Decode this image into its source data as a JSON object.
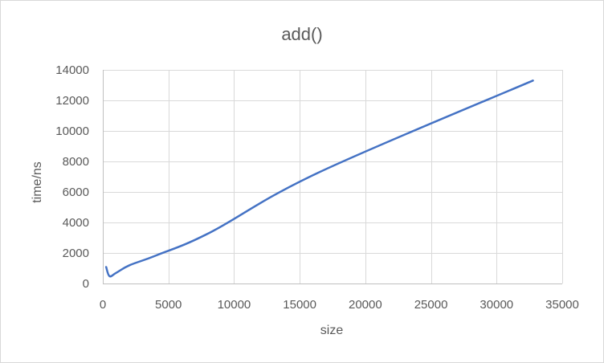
{
  "chart_data": {
    "type": "scatter",
    "title": "add()",
    "xlabel": "size",
    "ylabel": "time/ns",
    "xlim": [
      0,
      35000
    ],
    "ylim": [
      0,
      14000
    ],
    "xticks": [
      0,
      5000,
      10000,
      15000,
      20000,
      25000,
      30000,
      35000
    ],
    "yticks": [
      0,
      2000,
      4000,
      6000,
      8000,
      10000,
      12000,
      14000
    ],
    "grid": true,
    "series": [
      {
        "name": "add()",
        "color": "#4472c4",
        "x": [
          256,
          512,
          1024,
          2048,
          4096,
          8192,
          16384,
          32768
        ],
        "y": [
          1080,
          480,
          700,
          1200,
          1850,
          3350,
          7250,
          13300
        ]
      }
    ]
  }
}
